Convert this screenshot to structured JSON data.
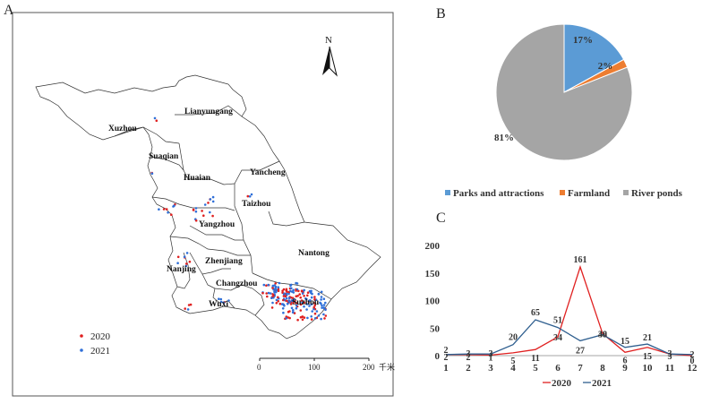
{
  "panel_a": {
    "letter": "A",
    "north_label": "N",
    "cities": [
      "Lianyungang",
      "Xuzhou",
      "Suaqian",
      "Yancheng",
      "Huaian",
      "Taizhou",
      "Yangzhou",
      "Nantong",
      "Zhenjiang",
      "Nanjing",
      "Changzhou",
      "Wuxi",
      "Suzhou"
    ],
    "legend": [
      {
        "label": "2020",
        "color": "#e02020"
      },
      {
        "label": "2021",
        "color": "#2f6fd8"
      }
    ],
    "scale": {
      "ticks": [
        "0",
        "100",
        "200"
      ],
      "unit": "千米"
    }
  },
  "colors": {
    "parks": "#5b9bd5",
    "farmland": "#ed7d31",
    "river": "#a5a5a5",
    "line2020": "#e02020",
    "line2021": "#2f5f8f"
  },
  "chart_data": [
    {
      "panel": "B",
      "type": "pie",
      "labels": [
        "Parks and attractions",
        "Farmland",
        "River ponds"
      ],
      "values": [
        17,
        2,
        81
      ],
      "value_labels": [
        "17%",
        "2%",
        "81%"
      ]
    },
    {
      "panel": "C",
      "type": "line",
      "x": [
        1,
        2,
        3,
        4,
        5,
        6,
        7,
        8,
        9,
        10,
        11,
        12
      ],
      "ylim": [
        0,
        200
      ],
      "yticks": [
        0,
        50,
        100,
        150,
        200
      ],
      "series": [
        {
          "name": "2020",
          "values": [
            2,
            2,
            1,
            5,
            11,
            34,
            161,
            40,
            6,
            15,
            3,
            0
          ]
        },
        {
          "name": "2021",
          "values": [
            2,
            3,
            3,
            20,
            65,
            51,
            27,
            38,
            15,
            21,
            3,
            2
          ]
        }
      ]
    }
  ]
}
